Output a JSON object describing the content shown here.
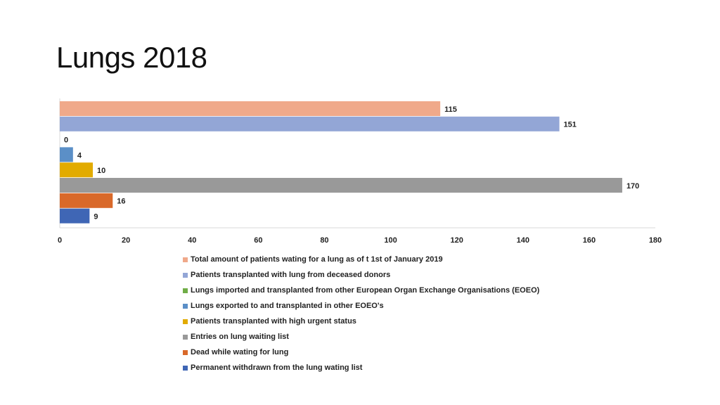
{
  "page": {
    "title": "Lungs 2018"
  },
  "chart_data": {
    "type": "bar",
    "orientation": "horizontal",
    "xlim": [
      0,
      180
    ],
    "x_ticks": [
      0,
      20,
      40,
      60,
      80,
      100,
      120,
      140,
      160,
      180
    ],
    "grid": false,
    "legend_position": "bottom",
    "series": [
      {
        "name": "Total amount of patients wating for a lung as of t 1st of January 2019",
        "value": 115,
        "label": "115",
        "color": "#f0a98a"
      },
      {
        "name": "Patients transplanted with lung from deceased donors",
        "value": 151,
        "label": "151",
        "color": "#93a6d6"
      },
      {
        "name": "Lungs imported and transplanted from other European Organ Exchange Organisations (EOEO)",
        "value": 0,
        "label": "0",
        "color": "#70ad47"
      },
      {
        "name": "Lungs exported to and transplanted in other EOEO's",
        "value": 4,
        "label": "4",
        "color": "#5b8fc7"
      },
      {
        "name": "Patients transplanted with high urgent status",
        "value": 10,
        "label": "10",
        "color": "#e2ab00"
      },
      {
        "name": "Entries on lung waiting list",
        "value": 170,
        "label": "170",
        "color": "#999999"
      },
      {
        "name": "Dead while wating for lung",
        "value": 16,
        "label": "16",
        "color": "#d9692a"
      },
      {
        "name": "Permanent withdrawn from the lung wating list",
        "value": 9,
        "label": "9",
        "color": "#3f66b5"
      }
    ]
  }
}
